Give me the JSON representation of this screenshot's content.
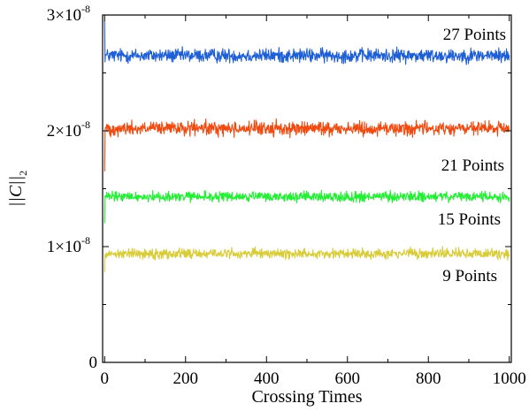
{
  "chart_data": {
    "type": "line",
    "xlabel": "Crossing Times",
    "ylabel": "||C||",
    "ylabel_subscript": "2",
    "xlim": [
      -5,
      1005
    ],
    "ylim": [
      0,
      3e-08
    ],
    "xticks": [
      {
        "value": 0,
        "label": "0"
      },
      {
        "value": 200,
        "label": "200"
      },
      {
        "value": 400,
        "label": "400"
      },
      {
        "value": 600,
        "label": "600"
      },
      {
        "value": 800,
        "label": "800"
      },
      {
        "value": 1000,
        "label": "1000"
      }
    ],
    "yticks": [
      {
        "value": 0,
        "mantissa": "0",
        "exponent": ""
      },
      {
        "value": 1e-08,
        "mantissa": "1×10",
        "exponent": "-8"
      },
      {
        "value": 2e-08,
        "mantissa": "2×10",
        "exponent": "-8"
      },
      {
        "value": 3e-08,
        "mantissa": "3×10",
        "exponent": "-8"
      }
    ],
    "grid": false,
    "series": [
      {
        "name": "27 Points",
        "color": "#1f5fd6",
        "mean": 2.65e-08,
        "noise_amplitude": 9e-10,
        "initial_value": 2.95e-08,
        "x_range": [
          0,
          1000
        ]
      },
      {
        "name": "21 Points",
        "color": "#f04a10",
        "mean": 2.02e-08,
        "noise_amplitude": 9e-10,
        "initial_value": 1.65e-08,
        "x_range": [
          0,
          1000
        ]
      },
      {
        "name": "15 Points",
        "color": "#22ee33",
        "mean": 1.43e-08,
        "noise_amplitude": 6.5e-10,
        "initial_value": 1.2e-08,
        "x_range": [
          0,
          1000
        ]
      },
      {
        "name": "9 Points",
        "color": "#d9cc3a",
        "mean": 9.4e-09,
        "noise_amplitude": 6.5e-10,
        "initial_value": 7.8e-09,
        "x_range": [
          0,
          1000
        ]
      }
    ]
  }
}
